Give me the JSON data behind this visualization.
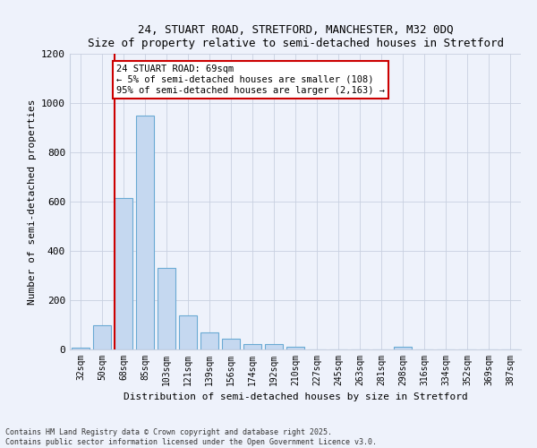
{
  "title1": "24, STUART ROAD, STRETFORD, MANCHESTER, M32 0DQ",
  "title2": "Size of property relative to semi-detached houses in Stretford",
  "xlabel": "Distribution of semi-detached houses by size in Stretford",
  "ylabel": "Number of semi-detached properties",
  "categories": [
    "32sqm",
    "50sqm",
    "68sqm",
    "85sqm",
    "103sqm",
    "121sqm",
    "139sqm",
    "156sqm",
    "174sqm",
    "192sqm",
    "210sqm",
    "227sqm",
    "245sqm",
    "263sqm",
    "281sqm",
    "298sqm",
    "316sqm",
    "334sqm",
    "352sqm",
    "369sqm",
    "387sqm"
  ],
  "values": [
    8,
    100,
    615,
    950,
    330,
    138,
    70,
    45,
    22,
    22,
    12,
    0,
    0,
    0,
    0,
    12,
    0,
    0,
    0,
    0,
    0
  ],
  "bar_color": "#c5d8f0",
  "bar_edge_color": "#6aaad4",
  "property_line_color": "#cc0000",
  "property_line_index": 2,
  "annotation_text": "24 STUART ROAD: 69sqm\n← 5% of semi-detached houses are smaller (108)\n95% of semi-detached houses are larger (2,163) →",
  "annotation_box_edgecolor": "#cc0000",
  "ylim": [
    0,
    1200
  ],
  "yticks": [
    0,
    200,
    400,
    600,
    800,
    1000,
    1200
  ],
  "footer_line1": "Contains HM Land Registry data © Crown copyright and database right 2025.",
  "footer_line2": "Contains public sector information licensed under the Open Government Licence v3.0.",
  "background_color": "#eef2fb",
  "grid_color": "#c8d0e0"
}
